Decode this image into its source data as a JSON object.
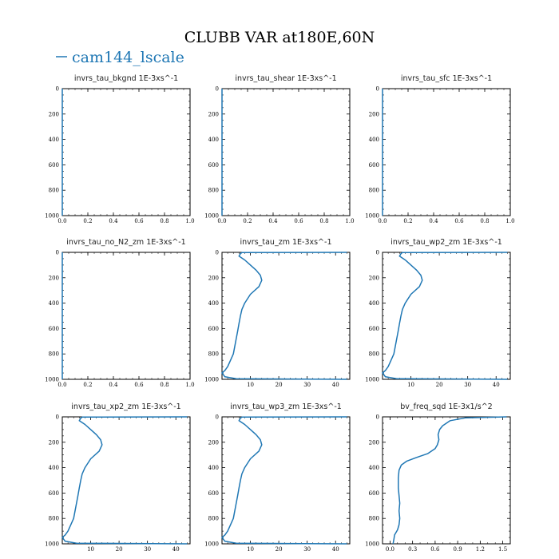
{
  "figure": {
    "title": "CLUBB VAR at180E,60N",
    "legend_label": "cam144_lscale",
    "legend_color": "#1f77b4"
  },
  "chart_data": [
    {
      "type": "line",
      "title": "invrs_tau_bkgnd   1E-3xs^-1",
      "xlim": [
        0,
        1
      ],
      "ylim": [
        1000,
        0
      ],
      "x_ticks": [
        "0.0",
        "0.2",
        "0.4",
        "0.6",
        "0.8",
        "1.0"
      ],
      "x_tick_values": [
        0,
        0.2,
        0.4,
        0.6,
        0.8,
        1.0
      ],
      "y_ticks": [
        "0",
        "200",
        "400",
        "600",
        "800",
        "1000"
      ],
      "series": [
        {
          "x": [
            0,
            0
          ],
          "y": [
            0,
            1000
          ]
        }
      ]
    },
    {
      "type": "line",
      "title": "invrs_tau_shear   1E-3xs^-1",
      "xlim": [
        0,
        1
      ],
      "ylim": [
        1000,
        0
      ],
      "x_ticks": [
        "0.0",
        "0.2",
        "0.4",
        "0.6",
        "0.8",
        "1.0"
      ],
      "x_tick_values": [
        0,
        0.2,
        0.4,
        0.6,
        0.8,
        1.0
      ],
      "y_ticks": [
        "0",
        "200",
        "400",
        "600",
        "800",
        "1000"
      ],
      "series": [
        {
          "x": [
            0,
            0
          ],
          "y": [
            0,
            1000
          ]
        }
      ]
    },
    {
      "type": "line",
      "title": "invrs_tau_sfc   1E-3xs^-1",
      "xlim": [
        0,
        1
      ],
      "ylim": [
        1000,
        0
      ],
      "x_ticks": [
        "0.0",
        "0.2",
        "0.4",
        "0.6",
        "0.8",
        "1.0"
      ],
      "x_tick_values": [
        0,
        0.2,
        0.4,
        0.6,
        0.8,
        1.0
      ],
      "y_ticks": [
        "0",
        "200",
        "400",
        "600",
        "800",
        "1000"
      ],
      "series": [
        {
          "x": [
            0,
            0
          ],
          "y": [
            0,
            1000
          ]
        }
      ]
    },
    {
      "type": "line",
      "title": "invrs_tau_no_N2_zm   1E-3xs^-1",
      "xlim": [
        0,
        1
      ],
      "ylim": [
        1000,
        0
      ],
      "x_ticks": [
        "0.0",
        "0.2",
        "0.4",
        "0.6",
        "0.8",
        "1.0"
      ],
      "x_tick_values": [
        0,
        0.2,
        0.4,
        0.6,
        0.8,
        1.0
      ],
      "y_ticks": [
        "0",
        "200",
        "400",
        "600",
        "800",
        "1000"
      ],
      "series": [
        {
          "x": [
            0,
            0
          ],
          "y": [
            0,
            1000
          ]
        }
      ]
    },
    {
      "type": "line",
      "title": "invrs_tau_zm   1E-3xs^-1",
      "xlim": [
        0,
        45
      ],
      "ylim": [
        1000,
        0
      ],
      "x_ticks": [
        "10",
        "20",
        "30",
        "40"
      ],
      "x_tick_values": [
        10,
        20,
        30,
        40
      ],
      "y_ticks": [
        "0",
        "200",
        "400",
        "600",
        "800",
        "1000"
      ],
      "series": [
        {
          "x": [
            44,
            7,
            6.5,
            6,
            8,
            10,
            12,
            13.5,
            14,
            13,
            10,
            8,
            7,
            6.5,
            6,
            5.5,
            5,
            4.5,
            4,
            3,
            2,
            1,
            0,
            1,
            5,
            44
          ],
          "y": [
            0,
            2,
            10,
            30,
            60,
            100,
            140,
            180,
            220,
            270,
            330,
            400,
            450,
            500,
            560,
            620,
            680,
            740,
            800,
            850,
            900,
            930,
            950,
            980,
            995,
            1000
          ]
        }
      ]
    },
    {
      "type": "line",
      "title": "invrs_tau_wp2_zm   1E-3xs^-1",
      "xlim": [
        0,
        45
      ],
      "ylim": [
        1000,
        0
      ],
      "x_ticks": [
        "10",
        "20",
        "30",
        "40"
      ],
      "x_tick_values": [
        10,
        20,
        30,
        40
      ],
      "y_ticks": [
        "0",
        "200",
        "400",
        "600",
        "800",
        "1000"
      ],
      "series": [
        {
          "x": [
            44,
            7,
            6.5,
            6,
            8,
            10,
            12,
            13.5,
            14,
            13,
            10,
            8,
            7,
            6.5,
            6,
            5.5,
            5,
            4.5,
            4,
            3,
            2,
            1,
            0,
            1,
            5,
            44
          ],
          "y": [
            0,
            2,
            10,
            30,
            60,
            100,
            140,
            180,
            220,
            270,
            330,
            400,
            450,
            500,
            560,
            620,
            680,
            740,
            800,
            850,
            900,
            930,
            950,
            980,
            995,
            1000
          ]
        }
      ]
    },
    {
      "type": "line",
      "title": "invrs_tau_xp2_zm   1E-3xs^-1",
      "xlim": [
        0,
        45
      ],
      "ylim": [
        1000,
        0
      ],
      "x_ticks": [
        "10",
        "20",
        "30",
        "40"
      ],
      "x_tick_values": [
        10,
        20,
        30,
        40
      ],
      "y_ticks": [
        "0",
        "200",
        "400",
        "600",
        "800",
        "1000"
      ],
      "series": [
        {
          "x": [
            44,
            7,
            6.5,
            6,
            8,
            10,
            12,
            13.5,
            14,
            13,
            10,
            8,
            7,
            6.5,
            6,
            5.5,
            5,
            4.5,
            4,
            3,
            2,
            1,
            0,
            1,
            5,
            44
          ],
          "y": [
            0,
            2,
            10,
            30,
            60,
            100,
            140,
            180,
            220,
            270,
            330,
            400,
            450,
            500,
            560,
            620,
            680,
            740,
            800,
            850,
            900,
            930,
            950,
            980,
            995,
            1000
          ]
        }
      ]
    },
    {
      "type": "line",
      "title": "invrs_tau_wp3_zm   1E-3xs^-1",
      "xlim": [
        0,
        45
      ],
      "ylim": [
        1000,
        0
      ],
      "x_ticks": [
        "10",
        "20",
        "30",
        "40"
      ],
      "x_tick_values": [
        10,
        20,
        30,
        40
      ],
      "y_ticks": [
        "0",
        "200",
        "400",
        "600",
        "800",
        "1000"
      ],
      "series": [
        {
          "x": [
            44,
            7,
            6.5,
            6,
            8,
            10,
            12,
            13.5,
            14,
            13,
            10,
            8,
            7,
            6.5,
            6,
            5.5,
            5,
            4.5,
            4,
            3,
            2,
            1,
            0,
            1,
            5,
            44
          ],
          "y": [
            0,
            2,
            10,
            30,
            60,
            100,
            140,
            180,
            220,
            270,
            330,
            400,
            450,
            500,
            560,
            620,
            680,
            740,
            800,
            850,
            900,
            930,
            950,
            980,
            995,
            1000
          ]
        }
      ]
    },
    {
      "type": "line",
      "title": "bv_freq_sqd   1E-3x1/s^2",
      "xlim": [
        -0.1,
        1.6
      ],
      "ylim": [
        1000,
        0
      ],
      "x_ticks": [
        "0.0",
        "0.3",
        "0.6",
        "0.9",
        "1.2",
        "1.5"
      ],
      "x_tick_values": [
        0,
        0.3,
        0.6,
        0.9,
        1.2,
        1.5
      ],
      "y_ticks": [
        "0",
        "200",
        "400",
        "600",
        "800",
        "1000"
      ],
      "series": [
        {
          "x": [
            1.55,
            1.0,
            0.8,
            0.7,
            0.66,
            0.64,
            0.65,
            0.63,
            0.6,
            0.5,
            0.35,
            0.22,
            0.15,
            0.12,
            0.11,
            0.11,
            0.12,
            0.13,
            0.12,
            0.13,
            0.12,
            0.1,
            0.06,
            0.05,
            0.04
          ],
          "y": [
            0,
            8,
            30,
            70,
            100,
            140,
            180,
            220,
            250,
            290,
            320,
            350,
            380,
            420,
            480,
            560,
            620,
            680,
            740,
            800,
            850,
            890,
            930,
            970,
            1000
          ]
        }
      ]
    }
  ]
}
